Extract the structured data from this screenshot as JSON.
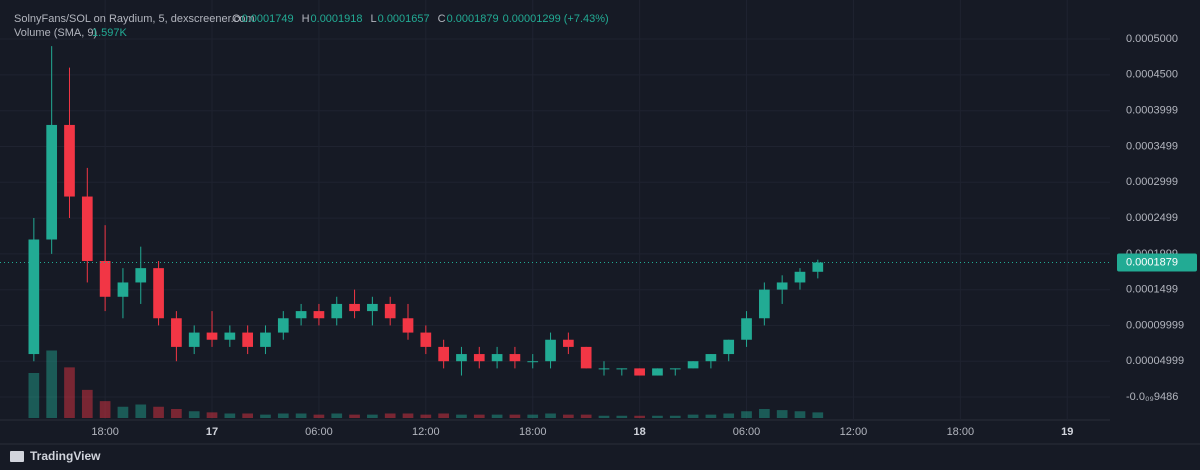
{
  "chart_data": {
    "type": "candlestick",
    "title": "SolnyFans/SOL on Raydium, 5, dexscreener.com",
    "ohlc_letters": [
      "O",
      "H",
      "L",
      "C"
    ],
    "change_label": "0.00001299 (+7.43%)",
    "volume_title": "Volume (SMA, 9)",
    "volume_sma_label": "1.597K",
    "brand": "TradingView",
    "up_color": "#22ab94",
    "down_color": "#f23645",
    "grid": true,
    "x": [
      14,
      15,
      16,
      17,
      18,
      19,
      20,
      21,
      22,
      23,
      24,
      25,
      26,
      27,
      28,
      29,
      30,
      31,
      32,
      33,
      34,
      35,
      36,
      37,
      38,
      39,
      40,
      41,
      42,
      43,
      44,
      45,
      46,
      47,
      48,
      49,
      50,
      51,
      52,
      53,
      54,
      55,
      56,
      57,
      58
    ],
    "open": [
      6e-05,
      0.00022,
      0.00038,
      0.00028,
      0.00019,
      0.00014,
      0.00016,
      0.00018,
      0.00011,
      7e-05,
      9e-05,
      8e-05,
      9e-05,
      7e-05,
      9e-05,
      0.00011,
      0.00012,
      0.00011,
      0.00013,
      0.00012,
      0.00013,
      0.00011,
      9e-05,
      7e-05,
      5e-05,
      6e-05,
      5e-05,
      6e-05,
      5e-05,
      5e-05,
      8e-05,
      7e-05,
      4e-05,
      4e-05,
      4e-05,
      3e-05,
      4e-05,
      4e-05,
      5e-05,
      6e-05,
      8e-05,
      0.00011,
      0.00015,
      0.00016,
      0.0001749
    ],
    "high": [
      0.00025,
      0.00049,
      0.00046,
      0.00032,
      0.00024,
      0.00018,
      0.00021,
      0.00019,
      0.00012,
      0.0001,
      0.00012,
      0.0001,
      0.0001,
      0.0001,
      0.00012,
      0.00013,
      0.00013,
      0.00014,
      0.00015,
      0.00014,
      0.00014,
      0.00013,
      0.0001,
      8e-05,
      7e-05,
      7e-05,
      7e-05,
      7e-05,
      6e-05,
      9e-05,
      9e-05,
      7e-05,
      5e-05,
      4e-05,
      4e-05,
      4e-05,
      4e-05,
      5e-05,
      6e-05,
      8e-05,
      0.00012,
      0.00016,
      0.00017,
      0.00018,
      0.0001918
    ],
    "low": [
      5e-05,
      0.0002,
      0.00025,
      0.00016,
      0.00012,
      0.00011,
      0.00013,
      0.0001,
      5e-05,
      6e-05,
      7e-05,
      7e-05,
      6e-05,
      6e-05,
      8e-05,
      0.0001,
      0.0001,
      0.0001,
      0.00011,
      0.0001,
      0.0001,
      8e-05,
      6e-05,
      4e-05,
      3e-05,
      4e-05,
      4e-05,
      4e-05,
      4e-05,
      4e-05,
      6e-05,
      4e-05,
      3e-05,
      3e-05,
      3e-05,
      3e-05,
      3e-05,
      4e-05,
      4e-05,
      5e-05,
      7e-05,
      0.0001,
      0.00013,
      0.00015,
      0.0001657
    ],
    "close": [
      0.00022,
      0.00038,
      0.00028,
      0.00019,
      0.00014,
      0.00016,
      0.00018,
      0.00011,
      7e-05,
      9e-05,
      8e-05,
      9e-05,
      7e-05,
      9e-05,
      0.00011,
      0.00012,
      0.00011,
      0.00013,
      0.00012,
      0.00013,
      0.00011,
      9e-05,
      7e-05,
      5e-05,
      6e-05,
      5e-05,
      6e-05,
      5e-05,
      5e-05,
      8e-05,
      7e-05,
      4e-05,
      4e-05,
      4e-05,
      3e-05,
      4e-05,
      4e-05,
      5e-05,
      6e-05,
      8e-05,
      0.00011,
      0.00015,
      0.00016,
      0.0001749,
      0.0001879
    ],
    "volume": [
      40,
      60,
      45,
      25,
      15,
      10,
      12,
      10,
      8,
      6,
      5,
      4,
      4,
      3,
      4,
      4,
      3,
      4,
      3,
      3,
      4,
      4,
      3,
      4,
      3,
      3,
      3,
      3,
      3,
      4,
      3,
      3,
      2,
      2,
      2,
      2,
      2,
      3,
      3,
      4,
      6,
      8,
      7,
      6,
      5
    ],
    "vlim": [
      0,
      80
    ],
    "xlim": [
      12.1,
      74.4
    ],
    "xticks": [
      {
        "value": 18,
        "label": "18:00"
      },
      {
        "value": 24,
        "label": "17"
      },
      {
        "value": 30,
        "label": "06:00"
      },
      {
        "value": 36,
        "label": "12:00"
      },
      {
        "value": 42,
        "label": "18:00"
      },
      {
        "value": 48,
        "label": "18"
      },
      {
        "value": 54,
        "label": "06:00"
      },
      {
        "value": 60,
        "label": "12:00"
      },
      {
        "value": 66,
        "label": "18:00"
      },
      {
        "value": 72,
        "label": "19"
      }
    ],
    "ylim": [
      -3.21e-05,
      0.0005545
    ],
    "yticks": [
      {
        "value": 0.0005,
        "label": "0.0005000"
      },
      {
        "value": 0.00045,
        "label": "0.0004500"
      },
      0.0003999,
      0.0003499,
      0.0002999,
      0.0002499,
      0.0001999,
      0.0001499,
      9.999e-05,
      4.999e-05,
      {
        "value": -9.486e-10,
        "label": "-0.0₀₉9486"
      }
    ]
  }
}
